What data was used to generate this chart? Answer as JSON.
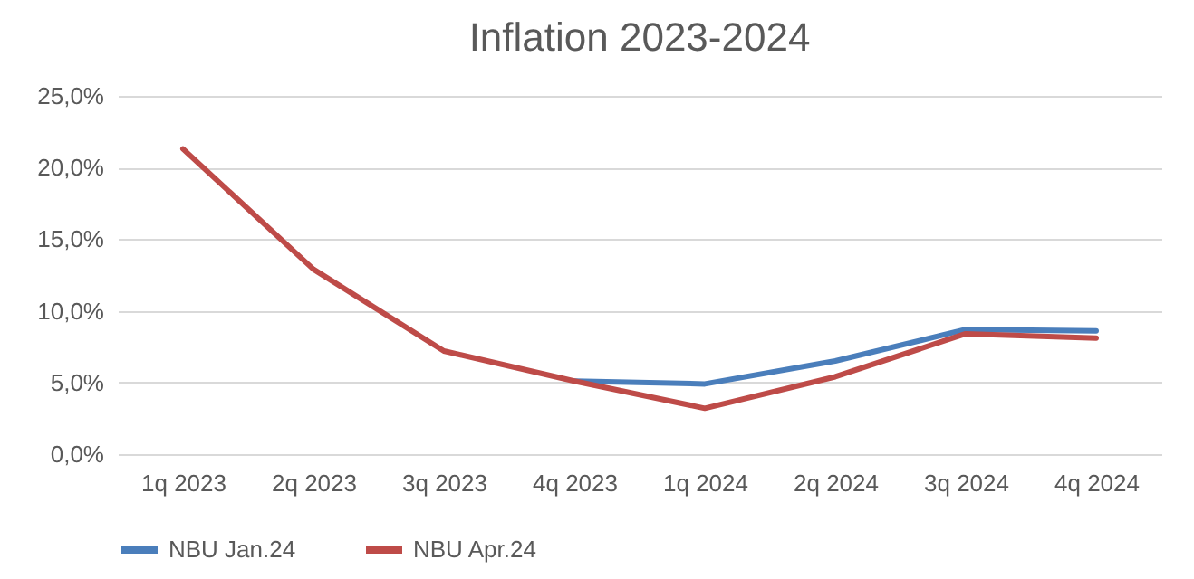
{
  "chart_data": {
    "type": "line",
    "title": "Inflation 2023-2024",
    "categories": [
      "1q 2023",
      "2q 2023",
      "3q 2023",
      "4q 2023",
      "1q 2024",
      "2q 2024",
      "3q 2024",
      "4q 2024"
    ],
    "series": [
      {
        "name": "NBU Jan.24",
        "color": "#4a7ebb",
        "values": [
          null,
          null,
          null,
          5.1,
          4.9,
          6.5,
          8.7,
          8.6
        ]
      },
      {
        "name": "NBU Apr.24",
        "color": "#be4b48",
        "values": [
          21.3,
          12.9,
          7.2,
          5.1,
          3.2,
          5.4,
          8.4,
          8.1
        ]
      }
    ],
    "ylim": [
      0,
      25
    ],
    "yticks": [
      {
        "value": 0,
        "label": "0,0%"
      },
      {
        "value": 5,
        "label": "5,0%"
      },
      {
        "value": 10,
        "label": "10,0%"
      },
      {
        "value": 15,
        "label": "15,0%"
      },
      {
        "value": 20,
        "label": "20,0%"
      },
      {
        "value": 25,
        "label": "25,0%"
      }
    ],
    "grid": "y",
    "legend": "bottom",
    "marker": "none",
    "line_style": "solid"
  }
}
